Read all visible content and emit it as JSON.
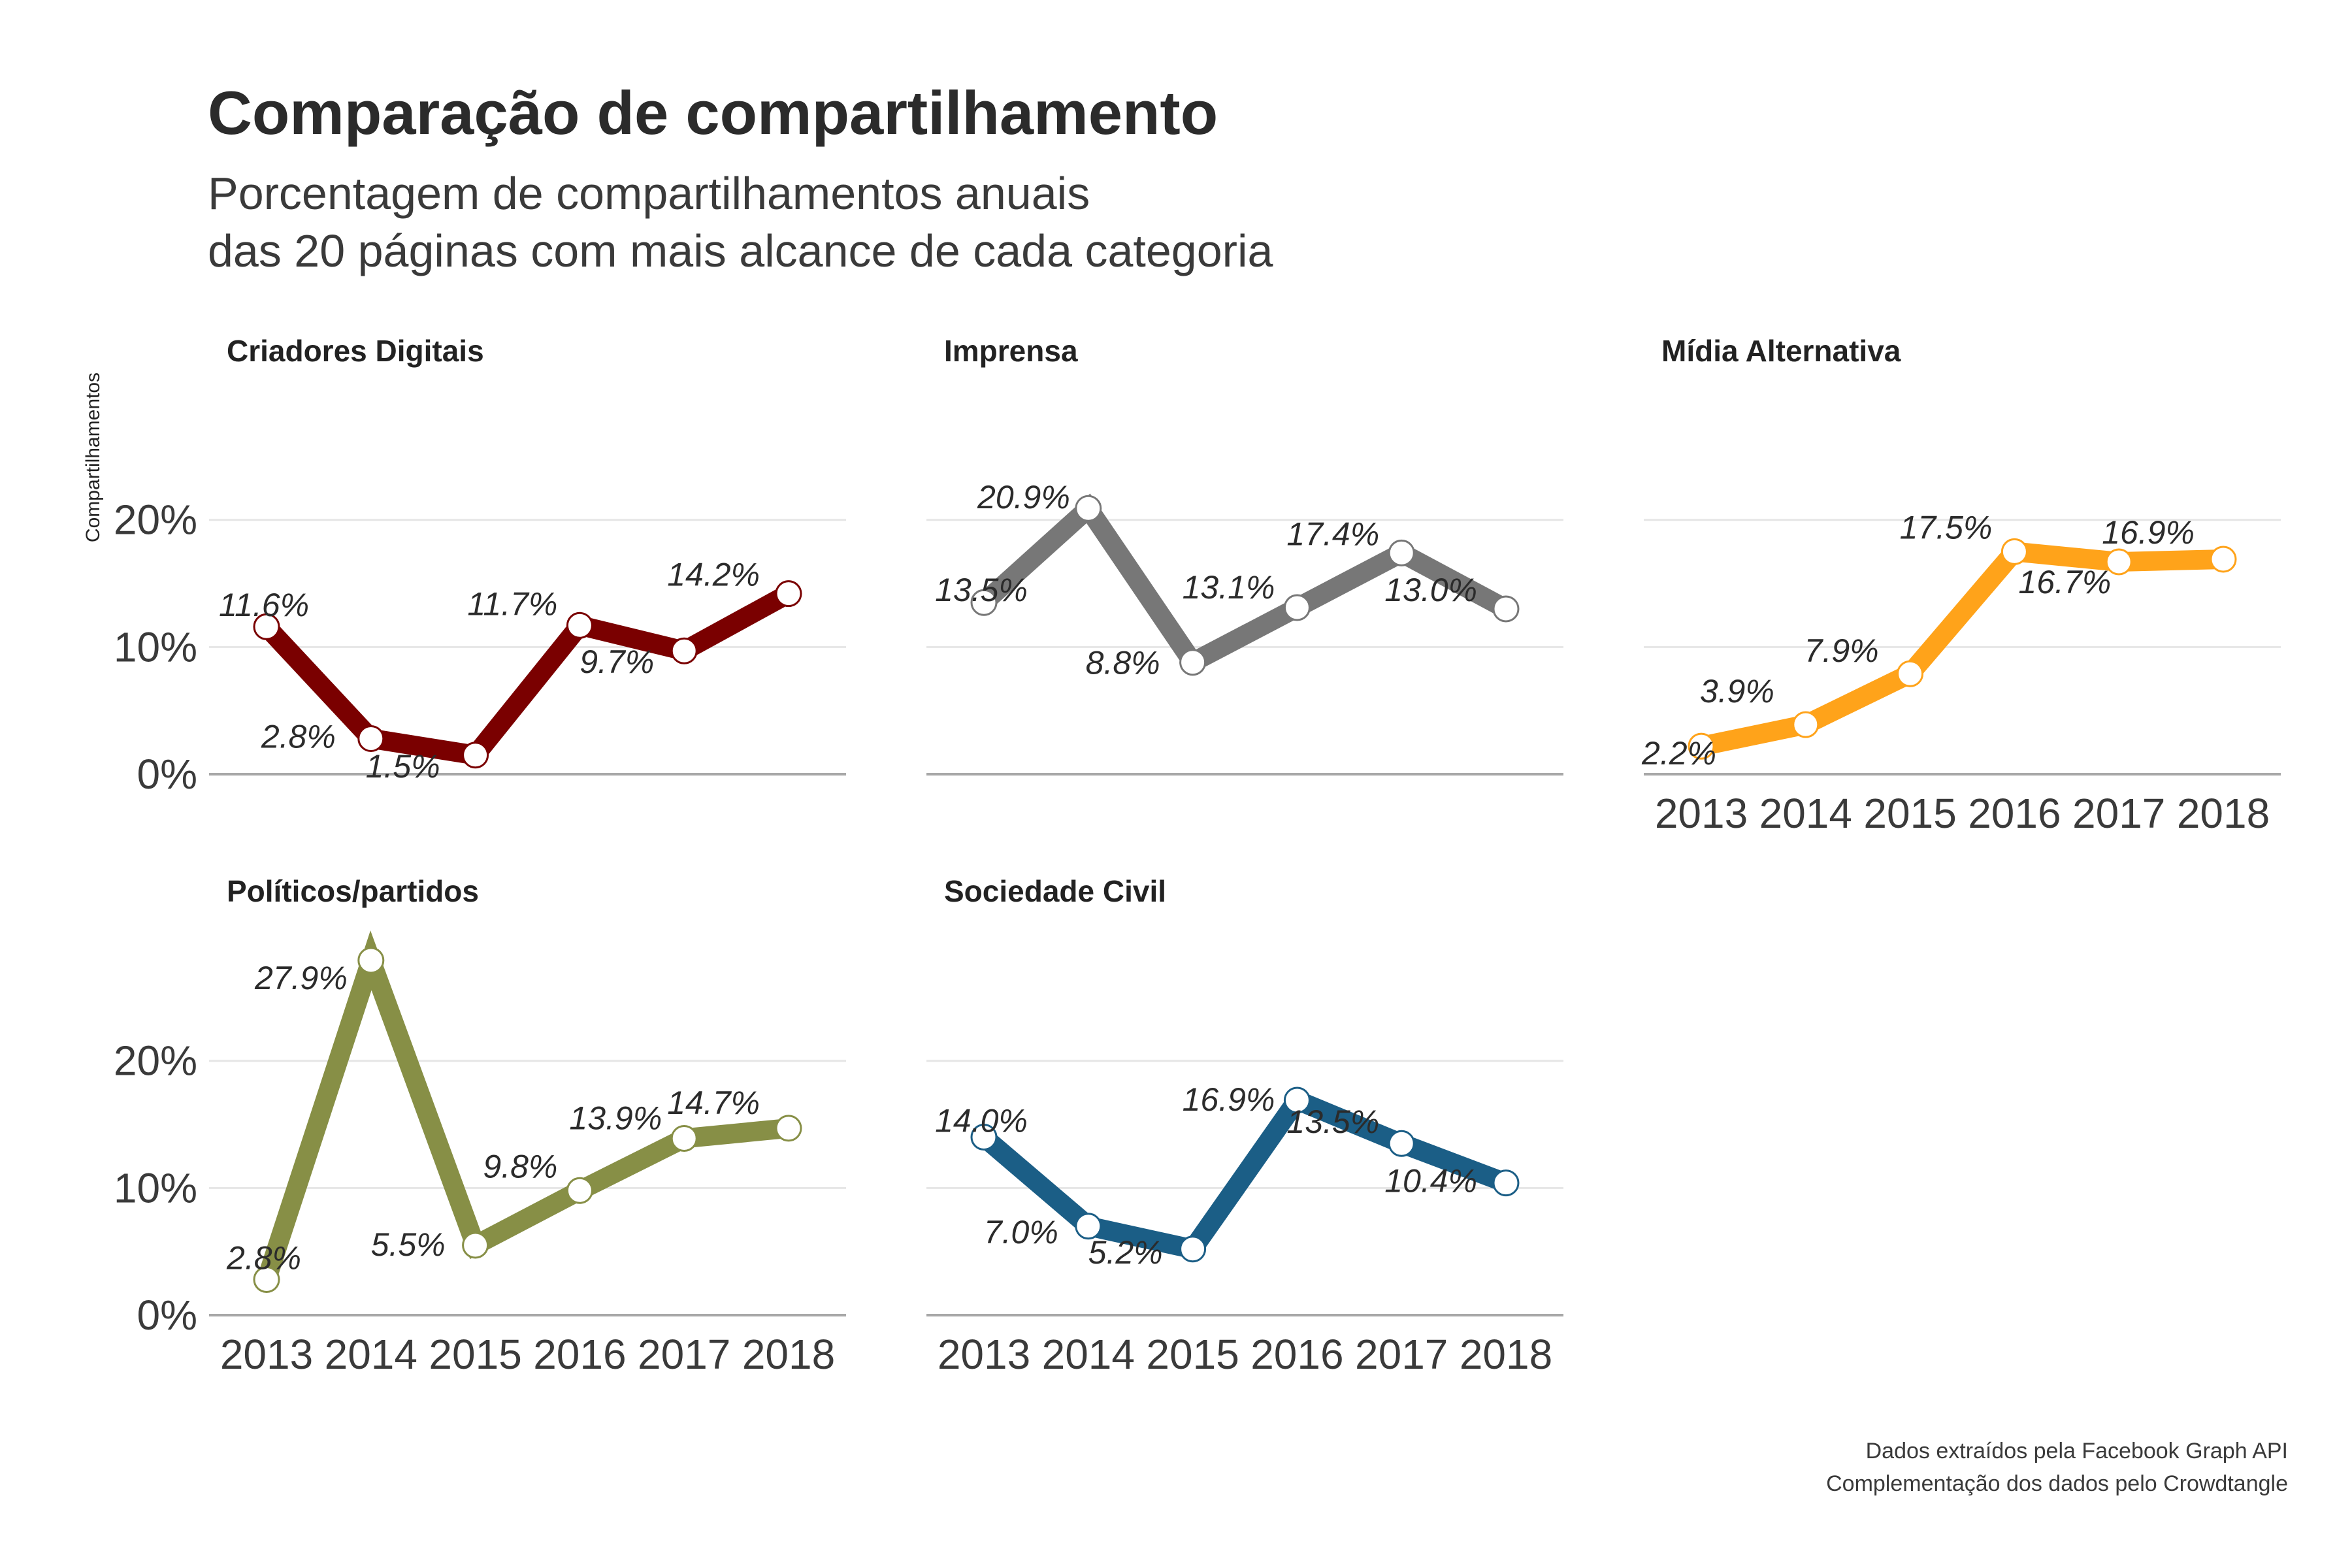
{
  "chart_data": {
    "type": "line",
    "title": "Comparação de compartilhamento",
    "subtitle": [
      "Porcentagem de compartilhamentos anuais",
      "das 20 páginas com mais alcance de cada categoria"
    ],
    "ylabel": "Compartilhamentos",
    "x": [
      "2013",
      "2014",
      "2015",
      "2016",
      "2017",
      "2018"
    ],
    "ylim": [
      0,
      28
    ],
    "yticks": [
      0,
      10,
      20
    ],
    "ytick_labels": [
      "0%",
      "10%",
      "20%"
    ],
    "grid": true,
    "legend": "none",
    "series": [
      {
        "name": "Criadores Digitais",
        "color": "#7a0000",
        "values": [
          11.6,
          2.8,
          1.5,
          11.7,
          9.7,
          14.2
        ],
        "labels": [
          "11.6%",
          "2.8%",
          "1.5%",
          "11.7%",
          "9.7%",
          "14.2%"
        ]
      },
      {
        "name": "Imprensa",
        "color": "#777777",
        "values": [
          13.5,
          20.9,
          8.8,
          13.1,
          17.4,
          13.0
        ],
        "labels": [
          "13.5%",
          "20.9%",
          "8.8%",
          "13.1%",
          "17.4%",
          "13.0%"
        ]
      },
      {
        "name": "Mídia Alternativa",
        "color": "#ffa31a",
        "values": [
          2.2,
          3.9,
          7.9,
          17.5,
          16.7,
          16.9
        ],
        "labels": [
          "2.2%",
          "3.9%",
          "7.9%",
          "17.5%",
          "16.7%",
          "16.9%"
        ]
      },
      {
        "name": "Políticos/partidos",
        "color": "#878f46",
        "values": [
          2.8,
          27.9,
          5.5,
          9.8,
          13.9,
          14.7
        ],
        "labels": [
          "2.8%",
          "27.9%",
          "5.5%",
          "9.8%",
          "13.9%",
          "14.7%"
        ]
      },
      {
        "name": "Sociedade Civil",
        "color": "#1b5e86",
        "values": [
          14.0,
          7.0,
          5.2,
          16.9,
          13.5,
          10.4
        ],
        "labels": [
          "14.0%",
          "7.0%",
          "5.2%",
          "16.9%",
          "13.5%",
          "10.4%"
        ]
      }
    ],
    "caption": [
      "Dados extraídos pela Facebook Graph API",
      "Complementação dos dados pelo Crowdtangle"
    ]
  }
}
